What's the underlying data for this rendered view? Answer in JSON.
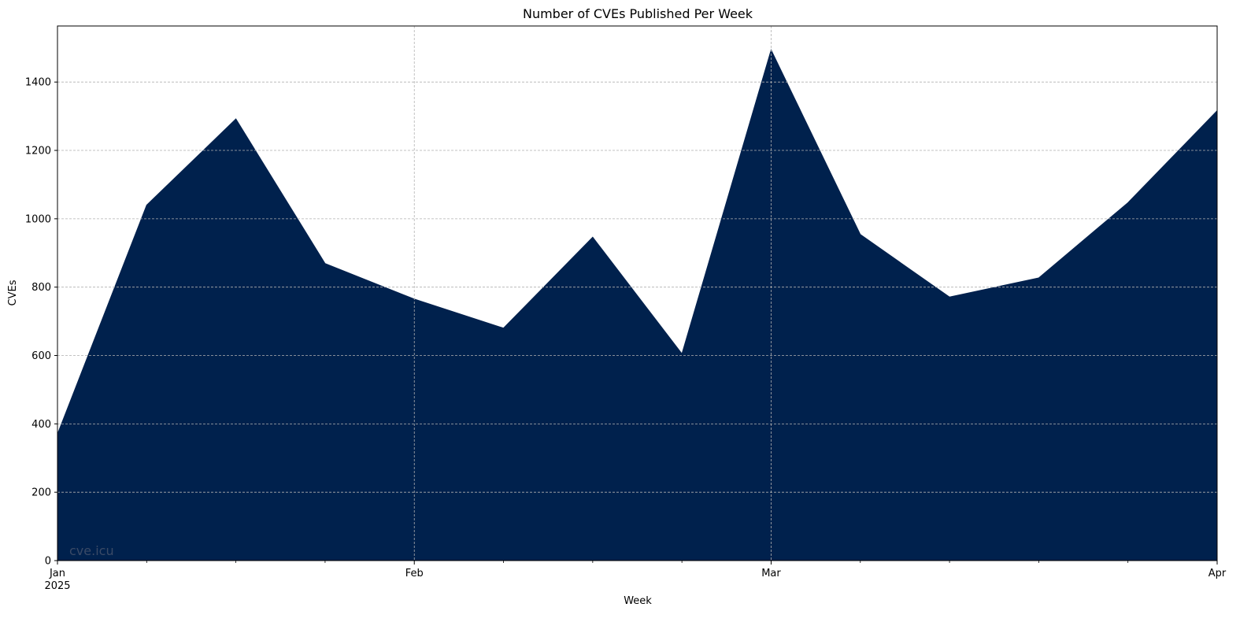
{
  "chart_data": {
    "type": "area",
    "title": "Number of CVEs Published Per Week",
    "xlabel": "Week",
    "ylabel": "CVEs",
    "x": [
      "2024-12-29",
      "2025-01-05",
      "2025-01-12",
      "2025-01-19",
      "2025-01-26",
      "2025-02-02",
      "2025-02-09",
      "2025-02-16",
      "2025-02-23",
      "2025-03-02",
      "2025-03-09",
      "2025-03-16",
      "2025-03-23",
      "2025-03-30"
    ],
    "values": [
      370,
      1040,
      1292,
      869,
      765,
      680,
      946,
      605,
      1494,
      954,
      771,
      827,
      1047,
      1316
    ],
    "xlim": [
      "2024-12-29",
      "2025-03-30"
    ],
    "ylim": [
      0,
      1564
    ],
    "yticks": [
      0,
      200,
      400,
      600,
      800,
      1000,
      1200,
      1400
    ],
    "xticks_major": [
      {
        "date": "2024-12-29",
        "label": "Jan",
        "sublabel": "2025"
      },
      {
        "date": "2025-01-26",
        "label": "Feb",
        "sublabel": ""
      },
      {
        "date": "2025-02-23",
        "label": "Mar",
        "sublabel": ""
      },
      {
        "date": "2025-03-30",
        "label": "Apr",
        "sublabel": ""
      }
    ],
    "xticks_minor": [
      "2025-01-05",
      "2025-01-12",
      "2025-01-19",
      "2025-02-02",
      "2025-02-09",
      "2025-02-16",
      "2025-03-02",
      "2025-03-09",
      "2025-03-16",
      "2025-03-23"
    ],
    "grid": true,
    "fill_color": "#00214d",
    "grid_color": "#b0b0b0",
    "watermark": "cve.icu",
    "watermark_color": "#3a4a66"
  }
}
